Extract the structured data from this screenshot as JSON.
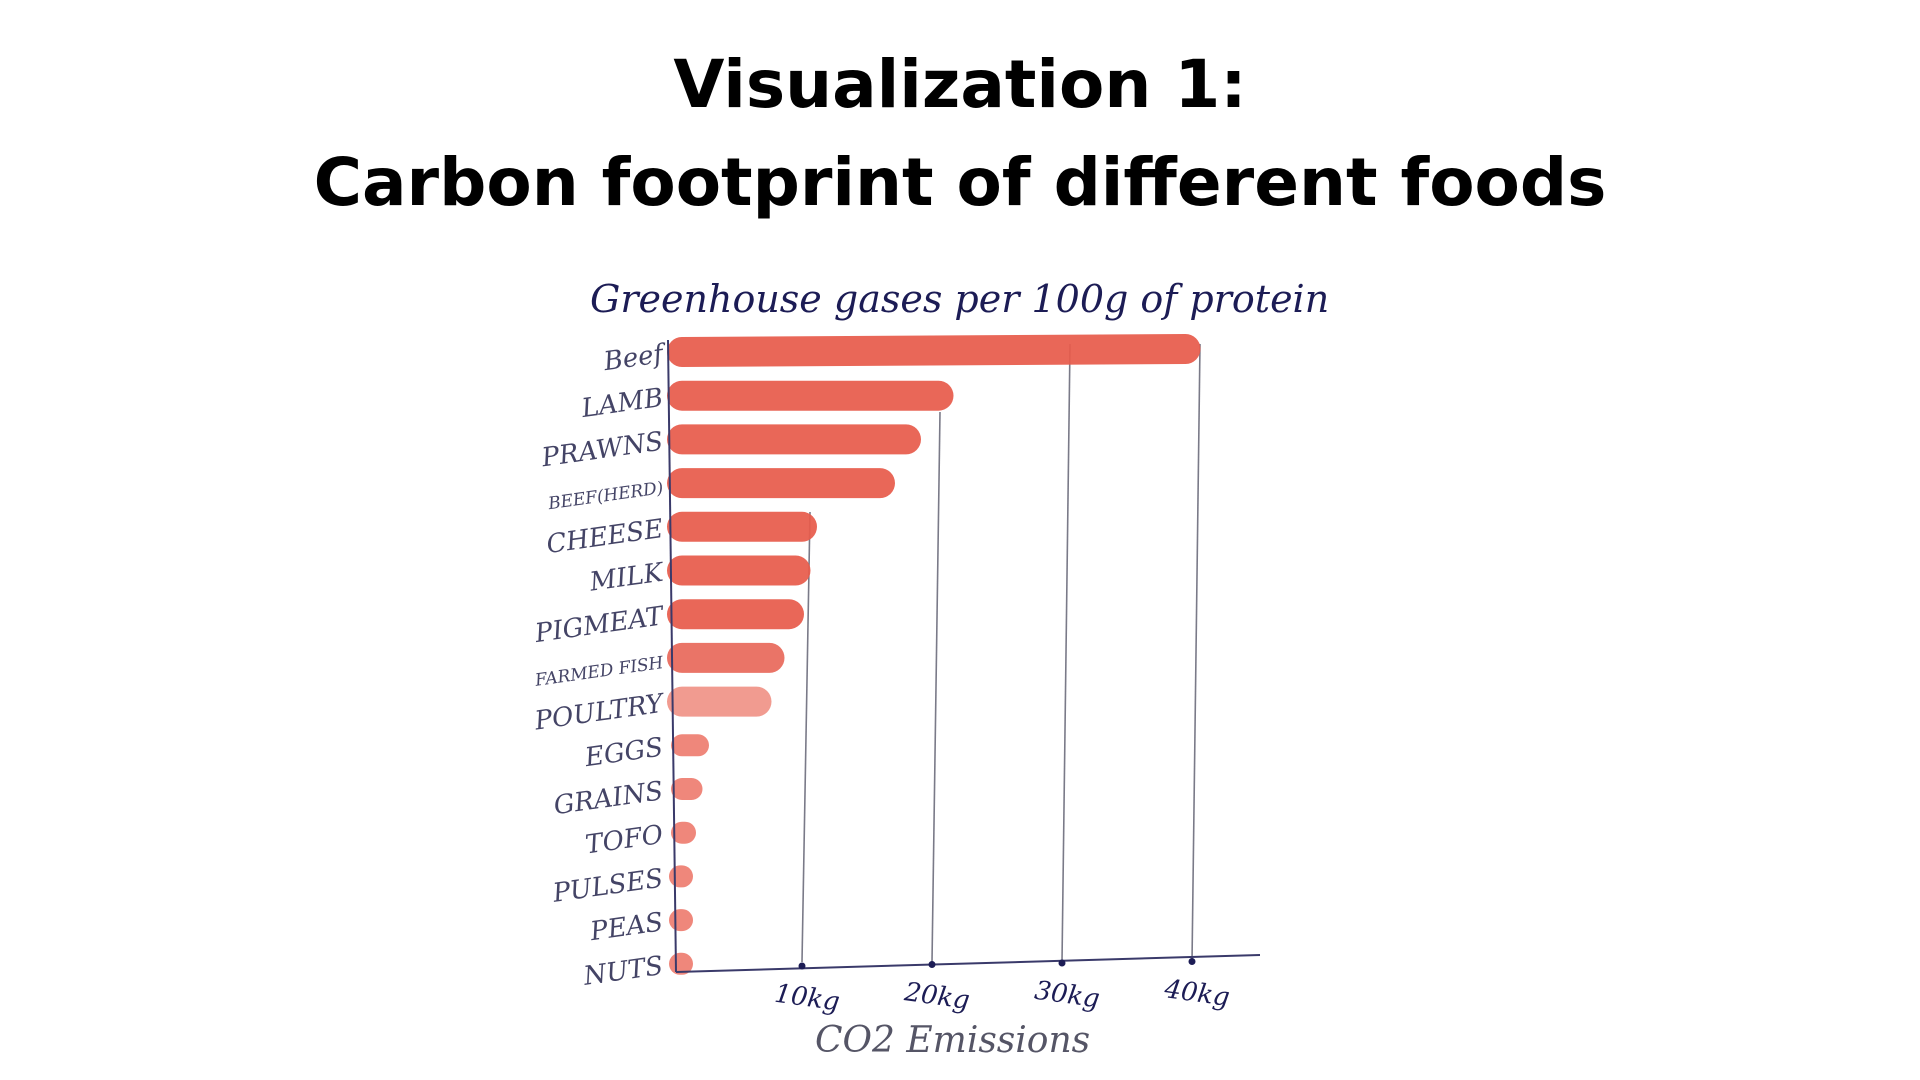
{
  "page": {
    "heading_line1": "Visualization 1:",
    "heading_line2": "Carbon footprint of different foods"
  },
  "chart_data": {
    "type": "bar",
    "orientation": "horizontal",
    "title": "Greenhouse gases per 100g of protein",
    "xlabel": "CO2 Emissions",
    "ylabel": "",
    "xlim": [
      0,
      45
    ],
    "x_ticks": [
      10,
      20,
      30,
      40
    ],
    "x_tick_labels": [
      "10kg",
      "20kg",
      "30kg",
      "40kg"
    ],
    "grid": "vertical lines at 10, 20, 30 and 40",
    "categories": [
      "Beef",
      "LAMB",
      "PRAWNS",
      "BEEF(HERD)",
      "CHEESE",
      "MILK",
      "PIGMEAT",
      "FARMED FISH",
      "POULTRY",
      "EGGS",
      "GRAINS",
      "TOFO",
      "PULSES",
      "PEAS",
      "NUTS"
    ],
    "values": [
      39.5,
      20.5,
      18,
      16,
      10,
      9.5,
      9,
      7.5,
      6.5,
      2,
      1.5,
      1,
      0.6,
      0.4,
      0.3
    ],
    "bar_colors": [
      "#e85c4c",
      "#e85c4c",
      "#e85c4c",
      "#e85c4c",
      "#e85c4c",
      "#e85c4c",
      "#e85c4c",
      "#e96a5c",
      "#f09488",
      "#ee7e72",
      "#ee7e72",
      "#ee7e72",
      "#ee7e72",
      "#ee7e72",
      "#ee7e72"
    ],
    "colors": {
      "bar": "#e85c4c",
      "bar_light": "#f09488",
      "ink": "#1c1c55",
      "category_ink": "#444466",
      "grid": "#7a7a88",
      "xlabel_ink": "#555566"
    }
  }
}
